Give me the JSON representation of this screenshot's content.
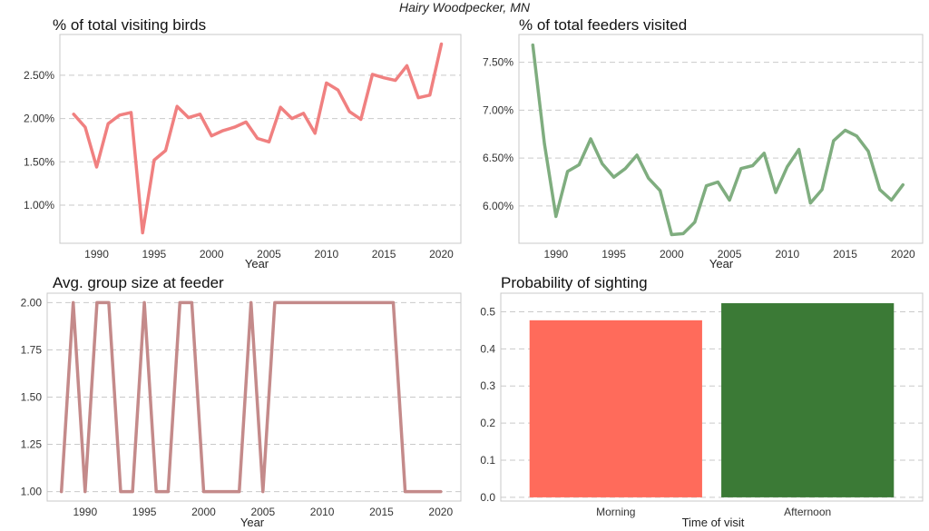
{
  "figure": {
    "suptitle": "Hairy Woodpecker, MN"
  },
  "chart_data": [
    {
      "type": "line",
      "title": "% of total visiting birds",
      "xlabel": "Year",
      "ylabel": "",
      "x": [
        1988,
        1989,
        1990,
        1991,
        1992,
        1993,
        1994,
        1995,
        1996,
        1997,
        1998,
        1999,
        2000,
        2001,
        2002,
        2003,
        2004,
        2005,
        2006,
        2007,
        2008,
        2009,
        2010,
        2011,
        2012,
        2013,
        2014,
        2015,
        2016,
        2017,
        2018,
        2019,
        2020
      ],
      "series": [
        {
          "values": [
            2.05,
            1.9,
            1.44,
            1.94,
            2.04,
            2.07,
            0.68,
            1.52,
            1.63,
            2.14,
            2.01,
            2.05,
            1.8,
            1.86,
            1.9,
            1.96,
            1.77,
            1.73,
            2.13,
            2.0,
            2.06,
            1.83,
            2.41,
            2.33,
            2.08,
            1.99,
            2.51,
            2.47,
            2.44,
            2.61,
            2.24,
            2.27,
            2.86
          ],
          "color": "#f08080"
        }
      ],
      "xlim": [
        1986.8,
        2021.7
      ],
      "ylim": [
        0.56,
        2.97
      ],
      "xticks": [
        1990,
        1995,
        2000,
        2005,
        2010,
        2015,
        2020
      ],
      "yticks": [
        1.0,
        1.5,
        2.0,
        2.5
      ],
      "ytick_labels": [
        "1.00%",
        "1.50%",
        "2.00%",
        "2.50%"
      ],
      "grid": "y"
    },
    {
      "type": "line",
      "title": "% of total feeders visited",
      "xlabel": "Year",
      "ylabel": "",
      "x": [
        1988,
        1989,
        1990,
        1991,
        1992,
        1993,
        1994,
        1995,
        1996,
        1997,
        1998,
        1999,
        2000,
        2001,
        2002,
        2003,
        2004,
        2005,
        2006,
        2007,
        2008,
        2009,
        2010,
        2011,
        2012,
        2013,
        2014,
        2015,
        2016,
        2017,
        2018,
        2019,
        2020
      ],
      "series": [
        {
          "values": [
            7.68,
            6.65,
            5.89,
            6.36,
            6.43,
            6.7,
            6.44,
            6.3,
            6.39,
            6.53,
            6.29,
            6.16,
            5.7,
            5.71,
            5.83,
            6.21,
            6.25,
            6.06,
            6.39,
            6.42,
            6.55,
            6.14,
            6.41,
            6.59,
            6.03,
            6.17,
            6.68,
            6.79,
            6.73,
            6.57,
            6.17,
            6.06,
            6.22
          ],
          "color": "#7fad7f"
        }
      ],
      "xlim": [
        1986.8,
        2021.7
      ],
      "ylim": [
        5.61,
        7.79
      ],
      "xticks": [
        1990,
        1995,
        2000,
        2005,
        2010,
        2015,
        2020
      ],
      "yticks": [
        6.0,
        6.5,
        7.0,
        7.5
      ],
      "ytick_labels": [
        "6.00%",
        "6.50%",
        "7.00%",
        "7.50%"
      ],
      "grid": "y"
    },
    {
      "type": "line",
      "title": "Avg. group size at feeder",
      "xlabel": "Year",
      "ylabel": "",
      "x": [
        1988,
        1989,
        1990,
        1991,
        1992,
        1993,
        1994,
        1995,
        1996,
        1997,
        1998,
        1999,
        2000,
        2001,
        2002,
        2003,
        2004,
        2005,
        2006,
        2007,
        2008,
        2009,
        2010,
        2011,
        2012,
        2013,
        2014,
        2015,
        2016,
        2017,
        2018,
        2019,
        2020
      ],
      "series": [
        {
          "values": [
            1,
            2,
            1,
            2,
            2,
            1,
            1,
            2,
            1,
            1,
            2,
            2,
            1,
            1,
            1,
            1,
            2,
            1,
            2,
            2,
            2,
            2,
            2,
            2,
            2,
            2,
            2,
            2,
            2,
            1,
            1,
            1,
            1
          ],
          "color": "#c48a8a"
        }
      ],
      "xlim": [
        1986.8,
        2021.7
      ],
      "ylim": [
        0.95,
        2.05
      ],
      "xticks": [
        1990,
        1995,
        2000,
        2005,
        2010,
        2015,
        2020
      ],
      "yticks": [
        1.0,
        1.25,
        1.5,
        1.75,
        2.0
      ],
      "ytick_labels": [
        "1.00",
        "1.25",
        "1.50",
        "1.75",
        "2.00"
      ],
      "grid": "y"
    },
    {
      "type": "bar",
      "title": "Probability of sighting",
      "xlabel": "Time of visit",
      "ylabel": "",
      "categories": [
        "Morning",
        "Afternoon"
      ],
      "values": [
        0.477,
        0.523
      ],
      "colors": [
        "#ff6b5b",
        "#3b7a36"
      ],
      "ylim": [
        -0.01,
        0.55
      ],
      "yticks": [
        0.0,
        0.1,
        0.2,
        0.3,
        0.4,
        0.5
      ],
      "ytick_labels": [
        "0.0",
        "0.1",
        "0.2",
        "0.3",
        "0.4",
        "0.5"
      ],
      "grid": "y"
    }
  ]
}
